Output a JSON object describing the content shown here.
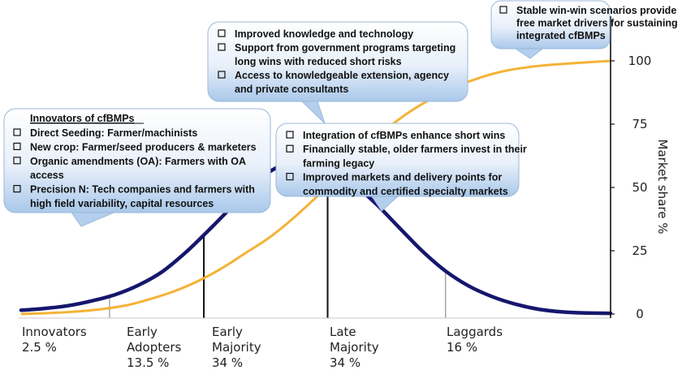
{
  "chart_data": {
    "type": "line",
    "title": "",
    "xlabel": "",
    "ylabel": "Market share %",
    "ylim": [
      0,
      100
    ],
    "yticks": [
      0,
      25,
      50,
      75,
      100
    ],
    "grid": false,
    "categories": [
      {
        "name": "Innovators",
        "pct": "2.5 %"
      },
      {
        "name": "Early Adopters",
        "pct": "13.5 %"
      },
      {
        "name": "Early Majority",
        "pct": "34 %"
      },
      {
        "name": "Late Majority",
        "pct": "34 %"
      },
      {
        "name": "Laggards",
        "pct": "16 %"
      }
    ],
    "series": [
      {
        "kind": "bell",
        "color": "#16166e",
        "values": [
          [
            0,
            1.5
          ],
          [
            4,
            2.2
          ],
          [
            8,
            3.3
          ],
          [
            12,
            5.2
          ],
          [
            16,
            7.7
          ],
          [
            20,
            11.5
          ],
          [
            24,
            16.8
          ],
          [
            28,
            24.5
          ],
          [
            32,
            33.5
          ],
          [
            36,
            43
          ],
          [
            40,
            52.5
          ],
          [
            44,
            58.5
          ],
          [
            48,
            60
          ],
          [
            52,
            57.5
          ],
          [
            56,
            52
          ],
          [
            60,
            44
          ],
          [
            64,
            34.5
          ],
          [
            68,
            25
          ],
          [
            72,
            17
          ],
          [
            76,
            11
          ],
          [
            80,
            6.8
          ],
          [
            84,
            3.8
          ],
          [
            88,
            1.8
          ],
          [
            92,
            0.8
          ],
          [
            96,
            0.4
          ],
          [
            100,
            0.3
          ]
        ]
      },
      {
        "kind": "cumulative",
        "color": "#f5b237",
        "values": [
          [
            0,
            0
          ],
          [
            6,
            0.5
          ],
          [
            12,
            1.5
          ],
          [
            18,
            3.5
          ],
          [
            22,
            6
          ],
          [
            26,
            9
          ],
          [
            30,
            13
          ],
          [
            34,
            18
          ],
          [
            38,
            24
          ],
          [
            42,
            30
          ],
          [
            46,
            37.5
          ],
          [
            50,
            46
          ],
          [
            54,
            55
          ],
          [
            58,
            64
          ],
          [
            62,
            73
          ],
          [
            66,
            80
          ],
          [
            70,
            85.5
          ],
          [
            74,
            90
          ],
          [
            78,
            93.5
          ],
          [
            82,
            96
          ],
          [
            86,
            97.5
          ],
          [
            90,
            98.5
          ],
          [
            100,
            100
          ]
        ]
      }
    ],
    "dividers": [
      15,
      31,
      52,
      72
    ]
  },
  "callouts": [
    {
      "items": [
        "Improved knowledge and technology",
        "Support from government programs targeting long wins with reduced short risks",
        "Access to knowledgeable extension, agency and private consultants"
      ]
    },
    {
      "items": [
        "Stable win-win scenarios provide free market drivers for sustaining integrated cfBMPs"
      ]
    },
    {
      "heading": "Innovators of cfBMPs",
      "items": [
        "Direct Seeding: Farmer/machinists",
        "New crop: Farmer/seed producers & marketers",
        "Organic amendments (OA): Farmers with OA access",
        "Precision N: Tech companies and farmers with high field variability, capital resources"
      ]
    },
    {
      "items": [
        "Integration of cfBMPs enhance short wins",
        "Financially stable, older farmers invest in  their farming legacy",
        "Improved markets and delivery points for commodity and certified specialty markets"
      ]
    }
  ]
}
